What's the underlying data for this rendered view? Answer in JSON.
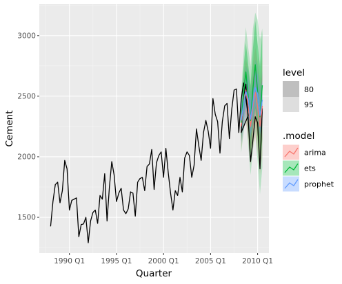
{
  "chart_data": {
    "type": "line",
    "xlabel": "Quarter",
    "ylabel": "Cement",
    "xlim": [
      1986.8,
      2011.2
    ],
    "ylim": [
      1205,
      3260
    ],
    "x_ticks": [
      {
        "value": 1990.0,
        "label": "1990 Q1"
      },
      {
        "value": 1995.0,
        "label": "1995 Q1"
      },
      {
        "value": 2000.0,
        "label": "2000 Q1"
      },
      {
        "value": 2005.0,
        "label": "2005 Q1"
      },
      {
        "value": 2010.0,
        "label": "2010 Q1"
      }
    ],
    "y_ticks": [
      1500,
      2000,
      2500,
      3000
    ],
    "grid": true,
    "history": {
      "start": 1988.0,
      "step": 0.25,
      "values": [
        1425,
        1630,
        1770,
        1790,
        1620,
        1720,
        1970,
        1900,
        1560,
        1640,
        1650,
        1660,
        1340,
        1440,
        1445,
        1500,
        1290,
        1470,
        1540,
        1560,
        1450,
        1680,
        1650,
        1860,
        1470,
        1750,
        1960,
        1850,
        1630,
        1700,
        1740,
        1560,
        1530,
        1570,
        1710,
        1700,
        1510,
        1790,
        1820,
        1830,
        1720,
        1920,
        1940,
        2060,
        1730,
        1950,
        2010,
        2040,
        1830,
        2070,
        1870,
        1700,
        1560,
        1720,
        1680,
        1830,
        1710,
        1990,
        2040,
        2010,
        1830,
        1930,
        2230,
        2090,
        1970,
        2200,
        2300,
        2210,
        2070,
        2480,
        2350,
        2290,
        2030,
        2290,
        2420,
        2440,
        2150,
        2390,
        2550,
        2560,
        2200,
        2470,
        2610,
        2480,
        2340
      ]
    },
    "test": {
      "start": 2008.25,
      "step": 0.25,
      "values": [
        2200,
        2500,
        2600,
        2310,
        1960,
        2140,
        2330,
        2280,
        1900,
        2400
      ]
    },
    "forecast_x": [
      2008.25,
      2008.5,
      2008.75,
      2009.0,
      2009.25,
      2009.5,
      2009.75,
      2010.0,
      2010.25,
      2010.5
    ],
    "series": [
      {
        "name": "arima",
        "color": "#F8766D",
        "mean": [
          2250,
          2450,
          2550,
          2420,
          2250,
          2420,
          2530,
          2410,
          2250,
          2420
        ],
        "lo80": [
          2120,
          2300,
          2380,
          2230,
          2040,
          2190,
          2290,
          2160,
          1990,
          2150
        ],
        "hi80": [
          2380,
          2600,
          2720,
          2610,
          2460,
          2650,
          2770,
          2660,
          2510,
          2690
        ],
        "lo95": [
          2050,
          2220,
          2290,
          2130,
          1930,
          2070,
          2160,
          2030,
          1850,
          2010
        ],
        "hi95": [
          2450,
          2680,
          2810,
          2710,
          2570,
          2770,
          2900,
          2790,
          2650,
          2830
        ]
      },
      {
        "name": "ets",
        "color": "#00BA38",
        "mean": [
          2280,
          2520,
          2700,
          2500,
          2300,
          2560,
          2760,
          2540,
          2330,
          2590
        ],
        "lo80": [
          2120,
          2310,
          2460,
          2240,
          2010,
          2230,
          2400,
          2150,
          1910,
          2140
        ],
        "hi80": [
          2440,
          2730,
          2940,
          2760,
          2590,
          2890,
          3120,
          2930,
          2750,
          3040
        ],
        "lo95": [
          2030,
          2200,
          2330,
          2100,
          1850,
          2060,
          2210,
          1950,
          1690,
          1910
        ],
        "hi95": [
          2530,
          2840,
          3070,
          2900,
          2750,
          3060,
          3190,
          3130,
          2970,
          3060
        ]
      },
      {
        "name": "prophet",
        "color": "#619CFF",
        "mean": [
          2300,
          2430,
          2540,
          2480,
          2310,
          2450,
          2570,
          2520,
          2340,
          2470
        ],
        "lo80": [
          2170,
          2290,
          2400,
          2330,
          2160,
          2300,
          2420,
          2360,
          2180,
          2310
        ],
        "hi80": [
          2430,
          2570,
          2680,
          2630,
          2460,
          2600,
          2720,
          2680,
          2500,
          2630
        ],
        "lo95": [
          2100,
          2220,
          2330,
          2250,
          2080,
          2220,
          2340,
          2280,
          2100,
          2230
        ],
        "hi95": [
          2500,
          2640,
          2750,
          2710,
          2540,
          2680,
          2800,
          2760,
          2580,
          2710
        ]
      }
    ]
  },
  "legend": {
    "level_title": "level",
    "levels": [
      {
        "label": "80",
        "color": "#bfbfbf"
      },
      {
        "label": "95",
        "color": "#dedede"
      }
    ],
    "model_title": ".model",
    "models": [
      {
        "label": "arima",
        "color": "#F8766D"
      },
      {
        "label": "ets",
        "color": "#00BA38"
      },
      {
        "label": "prophet",
        "color": "#619CFF"
      }
    ]
  }
}
